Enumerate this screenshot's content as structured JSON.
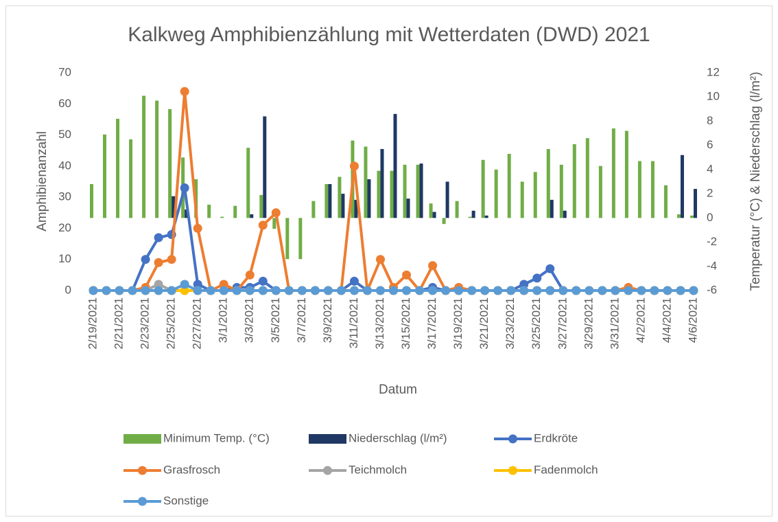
{
  "chart_data": {
    "type": "bar_line",
    "title": "Kalkweg Amphibienzählung mit Wetterdaten (DWD) 2021",
    "x_label": "Datum",
    "y_label": "Amphibienanzahl",
    "y2_label": "Temperatur (°C) & Niederschlag (l/m²)",
    "categories": [
      "2/19/2021",
      null,
      "2/21/2021",
      null,
      "2/23/2021",
      null,
      "2/25/2021",
      null,
      "2/27/2021",
      null,
      "3/1/2021",
      null,
      "3/3/2021",
      null,
      "3/5/2021",
      null,
      "3/7/2021",
      null,
      "3/9/2021",
      null,
      "3/11/2021",
      null,
      "3/13/2021",
      null,
      "3/15/2021",
      null,
      "3/17/2021",
      null,
      "3/19/2021",
      null,
      "3/21/2021",
      null,
      "3/23/2021",
      null,
      "3/25/2021",
      null,
      "3/27/2021",
      null,
      "3/29/2021",
      null,
      "3/31/2021",
      null,
      "4/2/2021",
      null,
      "4/4/2021",
      null,
      "4/6/2021"
    ],
    "ylim": [
      0,
      70
    ],
    "yticks": [
      0,
      10,
      20,
      30,
      40,
      50,
      60,
      70
    ],
    "y2lim": [
      -6,
      12
    ],
    "y2ticks": [
      -6,
      -4,
      -2,
      0,
      2,
      4,
      6,
      8,
      10,
      12
    ],
    "series": [
      {
        "name": "Minimum Temp. (°C)",
        "kind": "bar",
        "axis": "y2",
        "color": "#70ad47",
        "values": [
          2.8,
          6.9,
          8.2,
          6.5,
          10.1,
          9.7,
          9.0,
          5.0,
          3.2,
          1.1,
          0.1,
          1.0,
          5.8,
          1.9,
          -0.9,
          -3.4,
          -3.4,
          1.4,
          2.8,
          3.4,
          6.4,
          5.9,
          3.9,
          3.9,
          4.4,
          4.4,
          1.2,
          -0.5,
          1.4,
          0.1,
          4.8,
          4.0,
          5.3,
          3.0,
          3.8,
          5.7,
          4.4,
          6.1,
          6.6,
          4.3,
          7.4,
          7.2,
          4.7,
          4.7,
          2.7,
          0.3,
          0.2
        ]
      },
      {
        "name": "Niederschlag (l/m²)",
        "kind": "bar",
        "axis": "y2",
        "color": "#203864",
        "values": [
          0,
          0,
          0,
          0,
          0,
          0,
          1.8,
          0.7,
          0,
          0,
          0,
          0,
          0.3,
          8.4,
          0,
          0,
          0,
          0,
          2.8,
          2.0,
          1.5,
          3.2,
          5.7,
          8.6,
          1.6,
          4.5,
          0.5,
          3.0,
          0,
          0.6,
          0.2,
          0,
          0,
          0,
          0,
          1.5,
          0.6,
          0,
          0,
          0,
          0,
          0,
          0,
          0,
          0,
          5.2,
          2.4
        ]
      },
      {
        "name": "Erdkröte",
        "kind": "line",
        "color": "#4472c4",
        "values": [
          0,
          0,
          0,
          0,
          10,
          17,
          18,
          33,
          2,
          0,
          0,
          1,
          1,
          3,
          0,
          0,
          0,
          0,
          0,
          0,
          3,
          0,
          0,
          0,
          0,
          0,
          1,
          0,
          0,
          0,
          0,
          0,
          0,
          2,
          4,
          7,
          0,
          0,
          0,
          0,
          0,
          0,
          0,
          0,
          0,
          0,
          0
        ]
      },
      {
        "name": "Grasfrosch",
        "kind": "line",
        "color": "#ed7d31",
        "values": [
          0,
          0,
          0,
          0,
          1,
          9,
          10,
          64,
          20,
          0,
          2,
          0,
          5,
          21,
          25,
          0,
          0,
          0,
          0,
          0,
          40,
          0,
          10,
          1,
          5,
          0,
          8,
          0,
          1,
          0,
          0,
          0,
          0,
          0,
          0,
          0,
          0,
          0,
          0,
          0,
          0,
          1,
          0,
          0,
          0,
          0,
          0
        ]
      },
      {
        "name": "Teichmolch",
        "kind": "line",
        "color": "#a5a5a5",
        "values": [
          0,
          0,
          0,
          0,
          0,
          2,
          0,
          0,
          0,
          0,
          0,
          0,
          0,
          0,
          0,
          0,
          0,
          0,
          0,
          0,
          0,
          0,
          0,
          0,
          0,
          0,
          0,
          0,
          0,
          0,
          0,
          0,
          0,
          0,
          0,
          0,
          0,
          0,
          0,
          0,
          0,
          0,
          0,
          0,
          0,
          0,
          0
        ]
      },
      {
        "name": "Fadenmolch",
        "kind": "line",
        "color": "#ffc000",
        "values": [
          0,
          0,
          0,
          0,
          0,
          0,
          0,
          0,
          0,
          0,
          0,
          0,
          0,
          0,
          0,
          0,
          0,
          0,
          0,
          0,
          0,
          0,
          0,
          0,
          0,
          0,
          0,
          0,
          0,
          0,
          0,
          0,
          0,
          0,
          0,
          0,
          0,
          0,
          0,
          0,
          0,
          0,
          0,
          0,
          0,
          0,
          0
        ]
      },
      {
        "name": "Sonstige",
        "kind": "line",
        "color": "#5b9bd5",
        "values": [
          0,
          0,
          0,
          0,
          0,
          0,
          0,
          2,
          0,
          0,
          0,
          0,
          0,
          0,
          0,
          0,
          0,
          0,
          0,
          0,
          0,
          0,
          0,
          0,
          0,
          0,
          0,
          0,
          0,
          0,
          0,
          0,
          0,
          0,
          0,
          0,
          0,
          0,
          0,
          0,
          0,
          0,
          0,
          0,
          0,
          0,
          0
        ]
      }
    ]
  }
}
